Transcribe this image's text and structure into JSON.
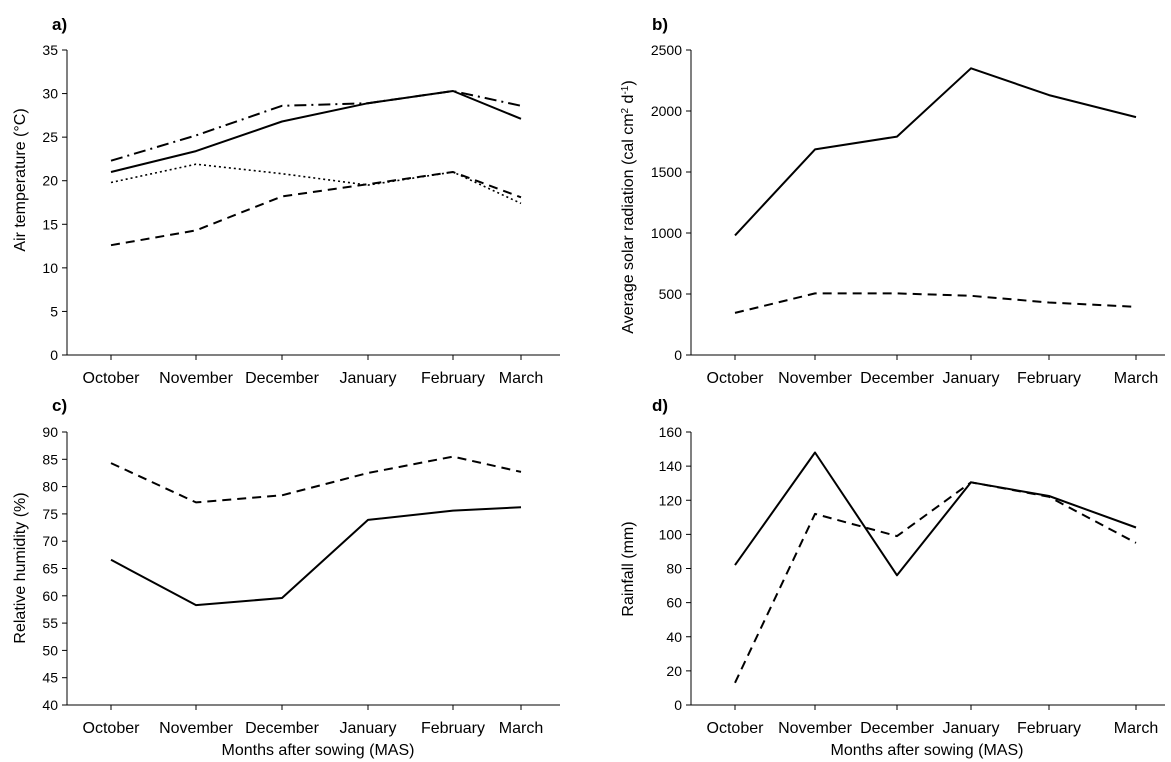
{
  "months": [
    "October",
    "November",
    "December",
    "January",
    "February",
    "March"
  ],
  "chart_data": [
    {
      "panel": "a)",
      "type": "line",
      "categories": [
        "October",
        "November",
        "December",
        "January",
        "February",
        "March"
      ],
      "xlabel": "",
      "ylabel": "Air temperature (°C)",
      "ylim": [
        0,
        35
      ],
      "yticks": [
        0,
        5,
        10,
        15,
        20,
        25,
        30,
        35
      ],
      "series": [
        {
          "style": "dashdot",
          "values": [
            22.3,
            25.2,
            28.6,
            28.9,
            30.3,
            28.6
          ]
        },
        {
          "style": "solid",
          "values": [
            21.0,
            23.4,
            26.8,
            28.9,
            30.3,
            27.1
          ]
        },
        {
          "style": "dotted",
          "values": [
            19.8,
            21.9,
            20.8,
            19.5,
            21.0,
            17.4
          ]
        },
        {
          "style": "dashed",
          "values": [
            12.6,
            14.3,
            18.2,
            19.6,
            21.0,
            18.1
          ]
        }
      ]
    },
    {
      "panel": "b)",
      "type": "line",
      "categories": [
        "October",
        "November",
        "December",
        "January",
        "February",
        "March"
      ],
      "xlabel": "",
      "ylabel_main": "Average solar radiation (cal cm",
      "ylabel_sup1": "2",
      "ylabel_mid": " d",
      "ylabel_sup2": "-1",
      "ylabel_end": ")",
      "ylim": [
        0,
        2500
      ],
      "yticks": [
        0,
        500,
        1000,
        1500,
        2000,
        2500
      ],
      "series": [
        {
          "style": "solid",
          "values": [
            980,
            1685,
            1790,
            2350,
            2130,
            1950
          ]
        },
        {
          "style": "dashed",
          "values": [
            345,
            505,
            505,
            485,
            430,
            395
          ]
        }
      ]
    },
    {
      "panel": "c)",
      "type": "line",
      "categories": [
        "October",
        "November",
        "December",
        "January",
        "February",
        "March"
      ],
      "xlabel": "Months after sowing (MAS)",
      "ylabel": "Relative humidity (%)",
      "ylim": [
        40,
        90
      ],
      "yticks": [
        40,
        45,
        50,
        55,
        60,
        65,
        70,
        75,
        80,
        85,
        90
      ],
      "series": [
        {
          "style": "dashed",
          "values": [
            84.3,
            77.1,
            78.4,
            82.5,
            85.5,
            82.7
          ]
        },
        {
          "style": "solid",
          "values": [
            66.6,
            58.3,
            59.6,
            73.9,
            75.6,
            76.2
          ]
        }
      ]
    },
    {
      "panel": "d)",
      "type": "line",
      "categories": [
        "October",
        "November",
        "December",
        "January",
        "February",
        "March"
      ],
      "xlabel": "Months after sowing (MAS)",
      "ylabel": "Rainfall (mm)",
      "ylim": [
        0,
        160
      ],
      "yticks": [
        0,
        20,
        40,
        60,
        80,
        100,
        120,
        140,
        160
      ],
      "series": [
        {
          "style": "solid",
          "values": [
            82,
            148,
            76,
            130.5,
            122.5,
            104
          ]
        },
        {
          "style": "dashed",
          "values": [
            13,
            112,
            99,
            130.5,
            122,
            95
          ]
        }
      ]
    }
  ]
}
